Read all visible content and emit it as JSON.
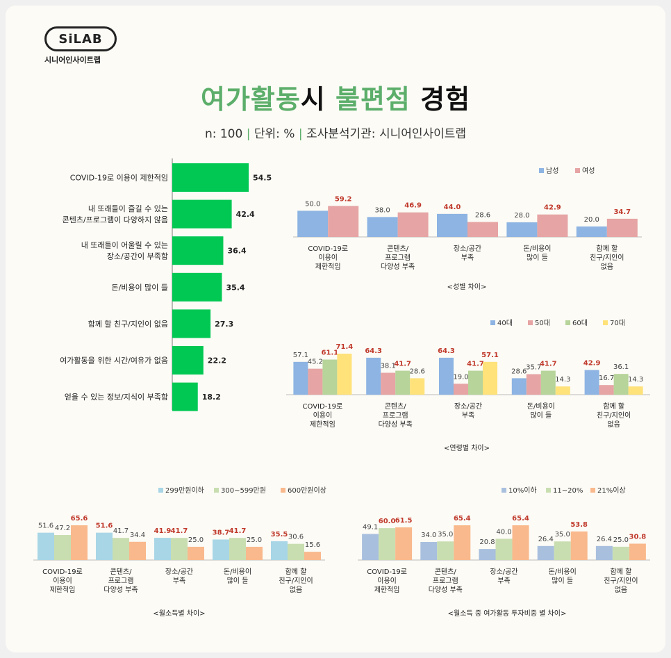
{
  "header": {
    "logo_text": "SiLAB",
    "logo_subtitle": "시니어인사이트랩",
    "title_parts": [
      {
        "text": "여가활동",
        "accent": true
      },
      {
        "text": "시 ",
        "accent": false
      },
      {
        "text": "불편점",
        "accent": true
      },
      {
        "text": " 경험",
        "accent": false
      }
    ],
    "subtitle_parts": [
      "n: 100",
      "단위: %",
      "조사분석기관: 시니어인사이트랩"
    ],
    "subtitle_sep": "|"
  },
  "colors": {
    "accent_green": "#5cae6a",
    "main_bar": "#00c853",
    "male": "#8db4e2",
    "female": "#e6a4a4",
    "age40": "#8db4e2",
    "age50": "#e6a4a4",
    "age60": "#b7d49a",
    "age70": "#ffe27a",
    "inc1": "#a8d6e6",
    "inc2": "#c9deb0",
    "inc3": "#f9b98c",
    "share1": "#a9bfde",
    "share2": "#c9deb0",
    "share3": "#f9b98c",
    "highlight_label": "#c0392b"
  },
  "chart_data": [
    {
      "type": "bar",
      "orientation": "horizontal",
      "categories": [
        "COVID-19로 이용이 제한적임",
        "내 또래들이 즐길 수 있는\n콘텐츠/프로그램이 다양하지 않음",
        "내 또래들이 어울릴 수 있는\n장소/공간이 부족함",
        "돈/비용이 많이 들",
        "함께 할 친구/지인이 없음",
        "여가활동을 위한 시간/여유가 없음",
        "얻을 수 있는 정보/지식이 부족함"
      ],
      "values": [
        54.5,
        42.4,
        36.4,
        35.4,
        27.3,
        22.2,
        18.2
      ],
      "xlim": [
        0,
        60
      ]
    },
    {
      "type": "bar",
      "categories": [
        "COVID-19로\n이용이\n제한적임",
        "콘텐츠/\n프로그램\n다양성 부족",
        "장소/공간\n부족",
        "돈/비용이\n많이 들",
        "함께 할\n친구/지인이\n없음"
      ],
      "series": [
        {
          "name": "남성",
          "values": [
            50.0,
            38.0,
            44.0,
            28.0,
            20.0
          ]
        },
        {
          "name": "여성",
          "values": [
            59.2,
            46.9,
            28.6,
            42.9,
            34.7
          ]
        }
      ],
      "highlighted": [
        [
          false,
          true
        ],
        [
          false,
          true
        ],
        [
          true,
          false
        ],
        [
          false,
          true
        ],
        [
          false,
          true
        ]
      ],
      "caption": "<성별 차이>",
      "legend": "top-right",
      "ylim": [
        0,
        80
      ]
    },
    {
      "type": "bar",
      "categories": [
        "COVID-19로\n이용이\n제한적임",
        "콘텐츠/\n프로그램\n다양성 부족",
        "장소/공간\n부족",
        "돈/비용이\n많이 들",
        "함께 할\n친구/지인이\n없음"
      ],
      "series": [
        {
          "name": "40대",
          "values": [
            57.1,
            64.3,
            64.3,
            28.6,
            42.9
          ]
        },
        {
          "name": "50대",
          "values": [
            45.2,
            38.1,
            19.0,
            35.7,
            16.7
          ]
        },
        {
          "name": "60대",
          "values": [
            61.1,
            41.7,
            41.7,
            41.7,
            36.1
          ]
        },
        {
          "name": "70대",
          "values": [
            71.4,
            28.6,
            57.1,
            14.3,
            14.3
          ]
        }
      ],
      "highlighted": [
        [
          false,
          false,
          true,
          true
        ],
        [
          true,
          false,
          true,
          false
        ],
        [
          true,
          false,
          true,
          true
        ],
        [
          false,
          false,
          true,
          false
        ],
        [
          true,
          false,
          false,
          false
        ]
      ],
      "caption": "<연령별 차이>",
      "legend": "top-right",
      "ylim": [
        0,
        100
      ]
    },
    {
      "type": "bar",
      "categories": [
        "COVID-19로\n이용이\n제한적임",
        "콘텐츠/\n프로그램\n다양성 부족",
        "장소/공간\n부족",
        "돈/비용이\n많이 들",
        "함께 할\n친구/지인이\n없음"
      ],
      "series": [
        {
          "name": "299만원이하",
          "values": [
            51.6,
            51.6,
            41.9,
            38.7,
            35.5
          ]
        },
        {
          "name": "300~599만원",
          "values": [
            47.2,
            41.7,
            41.7,
            41.7,
            30.6
          ]
        },
        {
          "name": "600만원이상",
          "values": [
            65.6,
            34.4,
            25.0,
            25.0,
            15.6
          ]
        }
      ],
      "highlighted": [
        [
          false,
          false,
          true
        ],
        [
          true,
          false,
          false
        ],
        [
          true,
          true,
          false
        ],
        [
          true,
          true,
          false
        ],
        [
          true,
          false,
          false
        ]
      ],
      "caption": "<월소득별 차이>",
      "legend": "top-right",
      "ylim": [
        0,
        100
      ]
    },
    {
      "type": "bar",
      "categories": [
        "COVID-19로\n이용이\n제한적임",
        "콘텐츠/\n프로그램\n다양성 부족",
        "장소/공간\n부족",
        "돈/비용이\n많이 들",
        "함께 할\n친구/지인이\n없음"
      ],
      "series": [
        {
          "name": "10%이하",
          "values": [
            49.1,
            34.0,
            20.8,
            26.4,
            26.4
          ]
        },
        {
          "name": "11~20%",
          "values": [
            60.0,
            35.0,
            40.0,
            35.0,
            25.0
          ]
        },
        {
          "name": "21%이상",
          "values": [
            61.5,
            65.4,
            65.4,
            53.8,
            30.8
          ]
        }
      ],
      "highlighted": [
        [
          false,
          true,
          true
        ],
        [
          false,
          false,
          true
        ],
        [
          false,
          false,
          true
        ],
        [
          false,
          false,
          true
        ],
        [
          false,
          false,
          true
        ]
      ],
      "caption": "<월소득 중 여가활동 투자비중 별 차이>",
      "legend": "top-right",
      "ylim": [
        0,
        100
      ]
    }
  ]
}
